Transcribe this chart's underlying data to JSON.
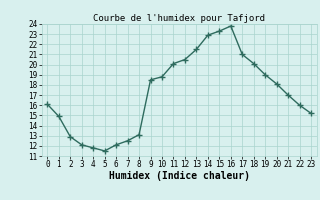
{
  "title": "Courbe de l'humidex pour Tafjord",
  "xlabel": "Humidex (Indice chaleur)",
  "x": [
    0,
    1,
    2,
    3,
    4,
    5,
    6,
    7,
    8,
    9,
    10,
    11,
    12,
    13,
    14,
    15,
    16,
    17,
    18,
    19,
    20,
    21,
    22,
    23
  ],
  "y": [
    16.1,
    14.9,
    12.9,
    12.1,
    11.8,
    11.5,
    12.1,
    12.5,
    13.1,
    18.5,
    18.8,
    20.1,
    20.5,
    21.5,
    22.9,
    23.3,
    23.8,
    21.0,
    20.1,
    19.0,
    18.1,
    17.0,
    16.0,
    15.2
  ],
  "line_color": "#2e6b5e",
  "marker": "+",
  "marker_size": 4,
  "bg_color": "#d8f0ee",
  "grid_color": "#aad4ce",
  "ylim": [
    11,
    24
  ],
  "xlim": [
    -0.5,
    23.5
  ],
  "yticks": [
    11,
    12,
    13,
    14,
    15,
    16,
    17,
    18,
    19,
    20,
    21,
    22,
    23,
    24
  ],
  "xticks": [
    0,
    1,
    2,
    3,
    4,
    5,
    6,
    7,
    8,
    9,
    10,
    11,
    12,
    13,
    14,
    15,
    16,
    17,
    18,
    19,
    20,
    21,
    22,
    23
  ],
  "title_fontsize": 6.5,
  "label_fontsize": 7,
  "tick_fontsize": 5.5
}
